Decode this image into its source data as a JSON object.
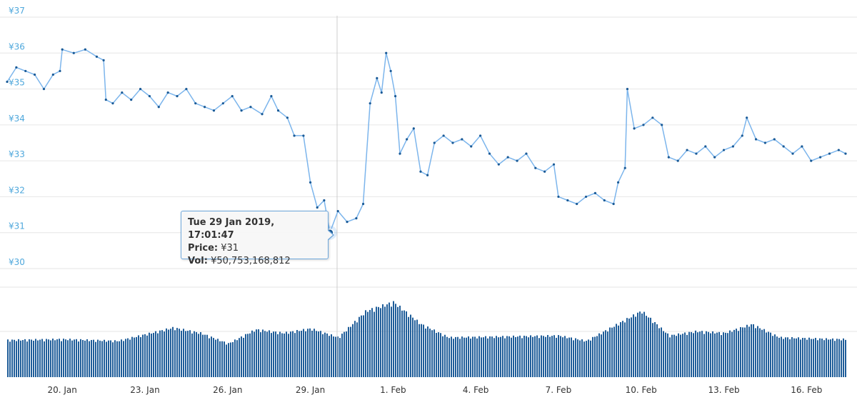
{
  "chart_data": {
    "type": "line",
    "currency_symbol": "¥",
    "price_ylim": [
      30,
      37
    ],
    "price_ticks": [
      "¥30",
      "¥31",
      "¥32",
      "¥33",
      "¥34",
      "¥35",
      "¥36",
      "¥37"
    ],
    "x_range": [
      "2019-01-18",
      "2019-02-17T10:00"
    ],
    "x_ticks": [
      {
        "label": "20. Jan",
        "date": "2019-01-20"
      },
      {
        "label": "23. Jan",
        "date": "2019-01-23"
      },
      {
        "label": "26. Jan",
        "date": "2019-01-26"
      },
      {
        "label": "29. Jan",
        "date": "2019-01-29"
      },
      {
        "label": "1. Feb",
        "date": "2019-02-01"
      },
      {
        "label": "4. Feb",
        "date": "2019-02-04"
      },
      {
        "label": "7. Feb",
        "date": "2019-02-07"
      },
      {
        "label": "10. Feb",
        "date": "2019-02-10"
      },
      {
        "label": "13. Feb",
        "date": "2019-02-13"
      },
      {
        "label": "16. Feb",
        "date": "2019-02-16"
      }
    ],
    "series": [
      {
        "values": [
          [
            "2019-01-18T00:00",
            35.2
          ],
          [
            "2019-01-18T08:00",
            35.6
          ],
          [
            "2019-01-18T16:00",
            35.5
          ],
          [
            "2019-01-19T00:00",
            35.4
          ],
          [
            "2019-01-19T08:00",
            35.0
          ],
          [
            "2019-01-19T16:00",
            35.4
          ],
          [
            "2019-01-19T22:00",
            35.5
          ],
          [
            "2019-01-20T00:00",
            36.1
          ],
          [
            "2019-01-20T10:00",
            36.0
          ],
          [
            "2019-01-20T20:00",
            36.1
          ],
          [
            "2019-01-21T06:00",
            35.9
          ],
          [
            "2019-01-21T12:00",
            35.8
          ],
          [
            "2019-01-21T14:00",
            34.7
          ],
          [
            "2019-01-21T20:00",
            34.6
          ],
          [
            "2019-01-22T04:00",
            34.9
          ],
          [
            "2019-01-22T12:00",
            34.7
          ],
          [
            "2019-01-22T20:00",
            35.0
          ],
          [
            "2019-01-23T04:00",
            34.8
          ],
          [
            "2019-01-23T12:00",
            34.5
          ],
          [
            "2019-01-23T20:00",
            34.9
          ],
          [
            "2019-01-24T04:00",
            34.8
          ],
          [
            "2019-01-24T12:00",
            35.0
          ],
          [
            "2019-01-24T20:00",
            34.6
          ],
          [
            "2019-01-25T04:00",
            34.5
          ],
          [
            "2019-01-25T12:00",
            34.4
          ],
          [
            "2019-01-25T20:00",
            34.6
          ],
          [
            "2019-01-26T04:00",
            34.8
          ],
          [
            "2019-01-26T12:00",
            34.4
          ],
          [
            "2019-01-26T20:00",
            34.5
          ],
          [
            "2019-01-27T06:00",
            34.3
          ],
          [
            "2019-01-27T14:00",
            34.8
          ],
          [
            "2019-01-27T20:00",
            34.4
          ],
          [
            "2019-01-28T04:00",
            34.2
          ],
          [
            "2019-01-28T10:00",
            33.7
          ],
          [
            "2019-01-28T18:00",
            33.7
          ],
          [
            "2019-01-29T00:00",
            32.4
          ],
          [
            "2019-01-29T06:00",
            31.7
          ],
          [
            "2019-01-29T12:00",
            31.9
          ],
          [
            "2019-01-29T17:01",
            31.0
          ],
          [
            "2019-01-30T00:00",
            31.6
          ],
          [
            "2019-01-30T08:00",
            31.3
          ],
          [
            "2019-01-30T16:00",
            31.4
          ],
          [
            "2019-01-30T22:00",
            31.8
          ],
          [
            "2019-01-31T04:00",
            34.6
          ],
          [
            "2019-01-31T10:00",
            35.3
          ],
          [
            "2019-01-31T14:00",
            34.9
          ],
          [
            "2019-01-31T18:00",
            36.0
          ],
          [
            "2019-01-31T22:00",
            35.5
          ],
          [
            "2019-02-01T02:00",
            34.8
          ],
          [
            "2019-02-01T06:00",
            33.2
          ],
          [
            "2019-02-01T12:00",
            33.6
          ],
          [
            "2019-02-01T18:00",
            33.9
          ],
          [
            "2019-02-02T00:00",
            32.7
          ],
          [
            "2019-02-02T06:00",
            32.6
          ],
          [
            "2019-02-02T12:00",
            33.5
          ],
          [
            "2019-02-02T20:00",
            33.7
          ],
          [
            "2019-02-03T04:00",
            33.5
          ],
          [
            "2019-02-03T12:00",
            33.6
          ],
          [
            "2019-02-03T20:00",
            33.4
          ],
          [
            "2019-02-04T04:00",
            33.7
          ],
          [
            "2019-02-04T12:00",
            33.2
          ],
          [
            "2019-02-04T20:00",
            32.9
          ],
          [
            "2019-02-05T04:00",
            33.1
          ],
          [
            "2019-02-05T12:00",
            33.0
          ],
          [
            "2019-02-05T20:00",
            33.2
          ],
          [
            "2019-02-06T04:00",
            32.8
          ],
          [
            "2019-02-06T12:00",
            32.7
          ],
          [
            "2019-02-06T20:00",
            32.9
          ],
          [
            "2019-02-07T00:00",
            32.0
          ],
          [
            "2019-02-07T08:00",
            31.9
          ],
          [
            "2019-02-07T16:00",
            31.8
          ],
          [
            "2019-02-08T00:00",
            32.0
          ],
          [
            "2019-02-08T08:00",
            32.1
          ],
          [
            "2019-02-08T16:00",
            31.9
          ],
          [
            "2019-02-09T00:00",
            31.8
          ],
          [
            "2019-02-09T04:00",
            32.4
          ],
          [
            "2019-02-09T10:00",
            32.8
          ],
          [
            "2019-02-09T12:00",
            35.0
          ],
          [
            "2019-02-09T18:00",
            33.9
          ],
          [
            "2019-02-10T02:00",
            34.0
          ],
          [
            "2019-02-10T10:00",
            34.2
          ],
          [
            "2019-02-10T18:00",
            34.0
          ],
          [
            "2019-02-11T00:00",
            33.1
          ],
          [
            "2019-02-11T08:00",
            33.0
          ],
          [
            "2019-02-11T16:00",
            33.3
          ],
          [
            "2019-02-12T00:00",
            33.2
          ],
          [
            "2019-02-12T08:00",
            33.4
          ],
          [
            "2019-02-12T16:00",
            33.1
          ],
          [
            "2019-02-13T00:00",
            33.3
          ],
          [
            "2019-02-13T08:00",
            33.4
          ],
          [
            "2019-02-13T16:00",
            33.7
          ],
          [
            "2019-02-13T20:00",
            34.2
          ],
          [
            "2019-02-14T04:00",
            33.6
          ],
          [
            "2019-02-14T12:00",
            33.5
          ],
          [
            "2019-02-14T20:00",
            33.6
          ],
          [
            "2019-02-15T04:00",
            33.4
          ],
          [
            "2019-02-15T12:00",
            33.2
          ],
          [
            "2019-02-15T20:00",
            33.4
          ],
          [
            "2019-02-16T04:00",
            33.0
          ],
          [
            "2019-02-16T12:00",
            33.1
          ],
          [
            "2019-02-16T20:00",
            33.2
          ],
          [
            "2019-02-17T04:00",
            33.3
          ],
          [
            "2019-02-17T10:00",
            33.2
          ]
        ]
      }
    ],
    "volume_series": {
      "values": [
        [
          "2019-01-18",
          0.42
        ],
        [
          "2019-01-20",
          0.43
        ],
        [
          "2019-01-22",
          0.41
        ],
        [
          "2019-01-24",
          0.56
        ],
        [
          "2019-01-25",
          0.5
        ],
        [
          "2019-01-26",
          0.38
        ],
        [
          "2019-01-27",
          0.54
        ],
        [
          "2019-01-28",
          0.5
        ],
        [
          "2019-01-29",
          0.55
        ],
        [
          "2019-01-30",
          0.45
        ],
        [
          "2019-01-31",
          0.75
        ],
        [
          "2019-02-01",
          0.85
        ],
        [
          "2019-02-02",
          0.6
        ],
        [
          "2019-02-03",
          0.45
        ],
        [
          "2019-02-05",
          0.46
        ],
        [
          "2019-02-07",
          0.47
        ],
        [
          "2019-02-08",
          0.41
        ],
        [
          "2019-02-09",
          0.58
        ],
        [
          "2019-02-10",
          0.75
        ],
        [
          "2019-02-11",
          0.47
        ],
        [
          "2019-02-12",
          0.52
        ],
        [
          "2019-02-13",
          0.5
        ],
        [
          "2019-02-14",
          0.6
        ],
        [
          "2019-02-15",
          0.45
        ],
        [
          "2019-02-17",
          0.43
        ]
      ]
    },
    "grid": true,
    "colors": {
      "line": "#7cb5ec",
      "marker": "#1a5a96",
      "volume": "#1f5d99",
      "axis_label": "#4fa8dc"
    },
    "tooltip": {
      "title": "Tue 29 Jan 2019, 17:01:47",
      "price_label": "Price:",
      "price_value": "¥31",
      "vol_label": "Vol:",
      "vol_value": "¥50,753,168,812"
    }
  }
}
